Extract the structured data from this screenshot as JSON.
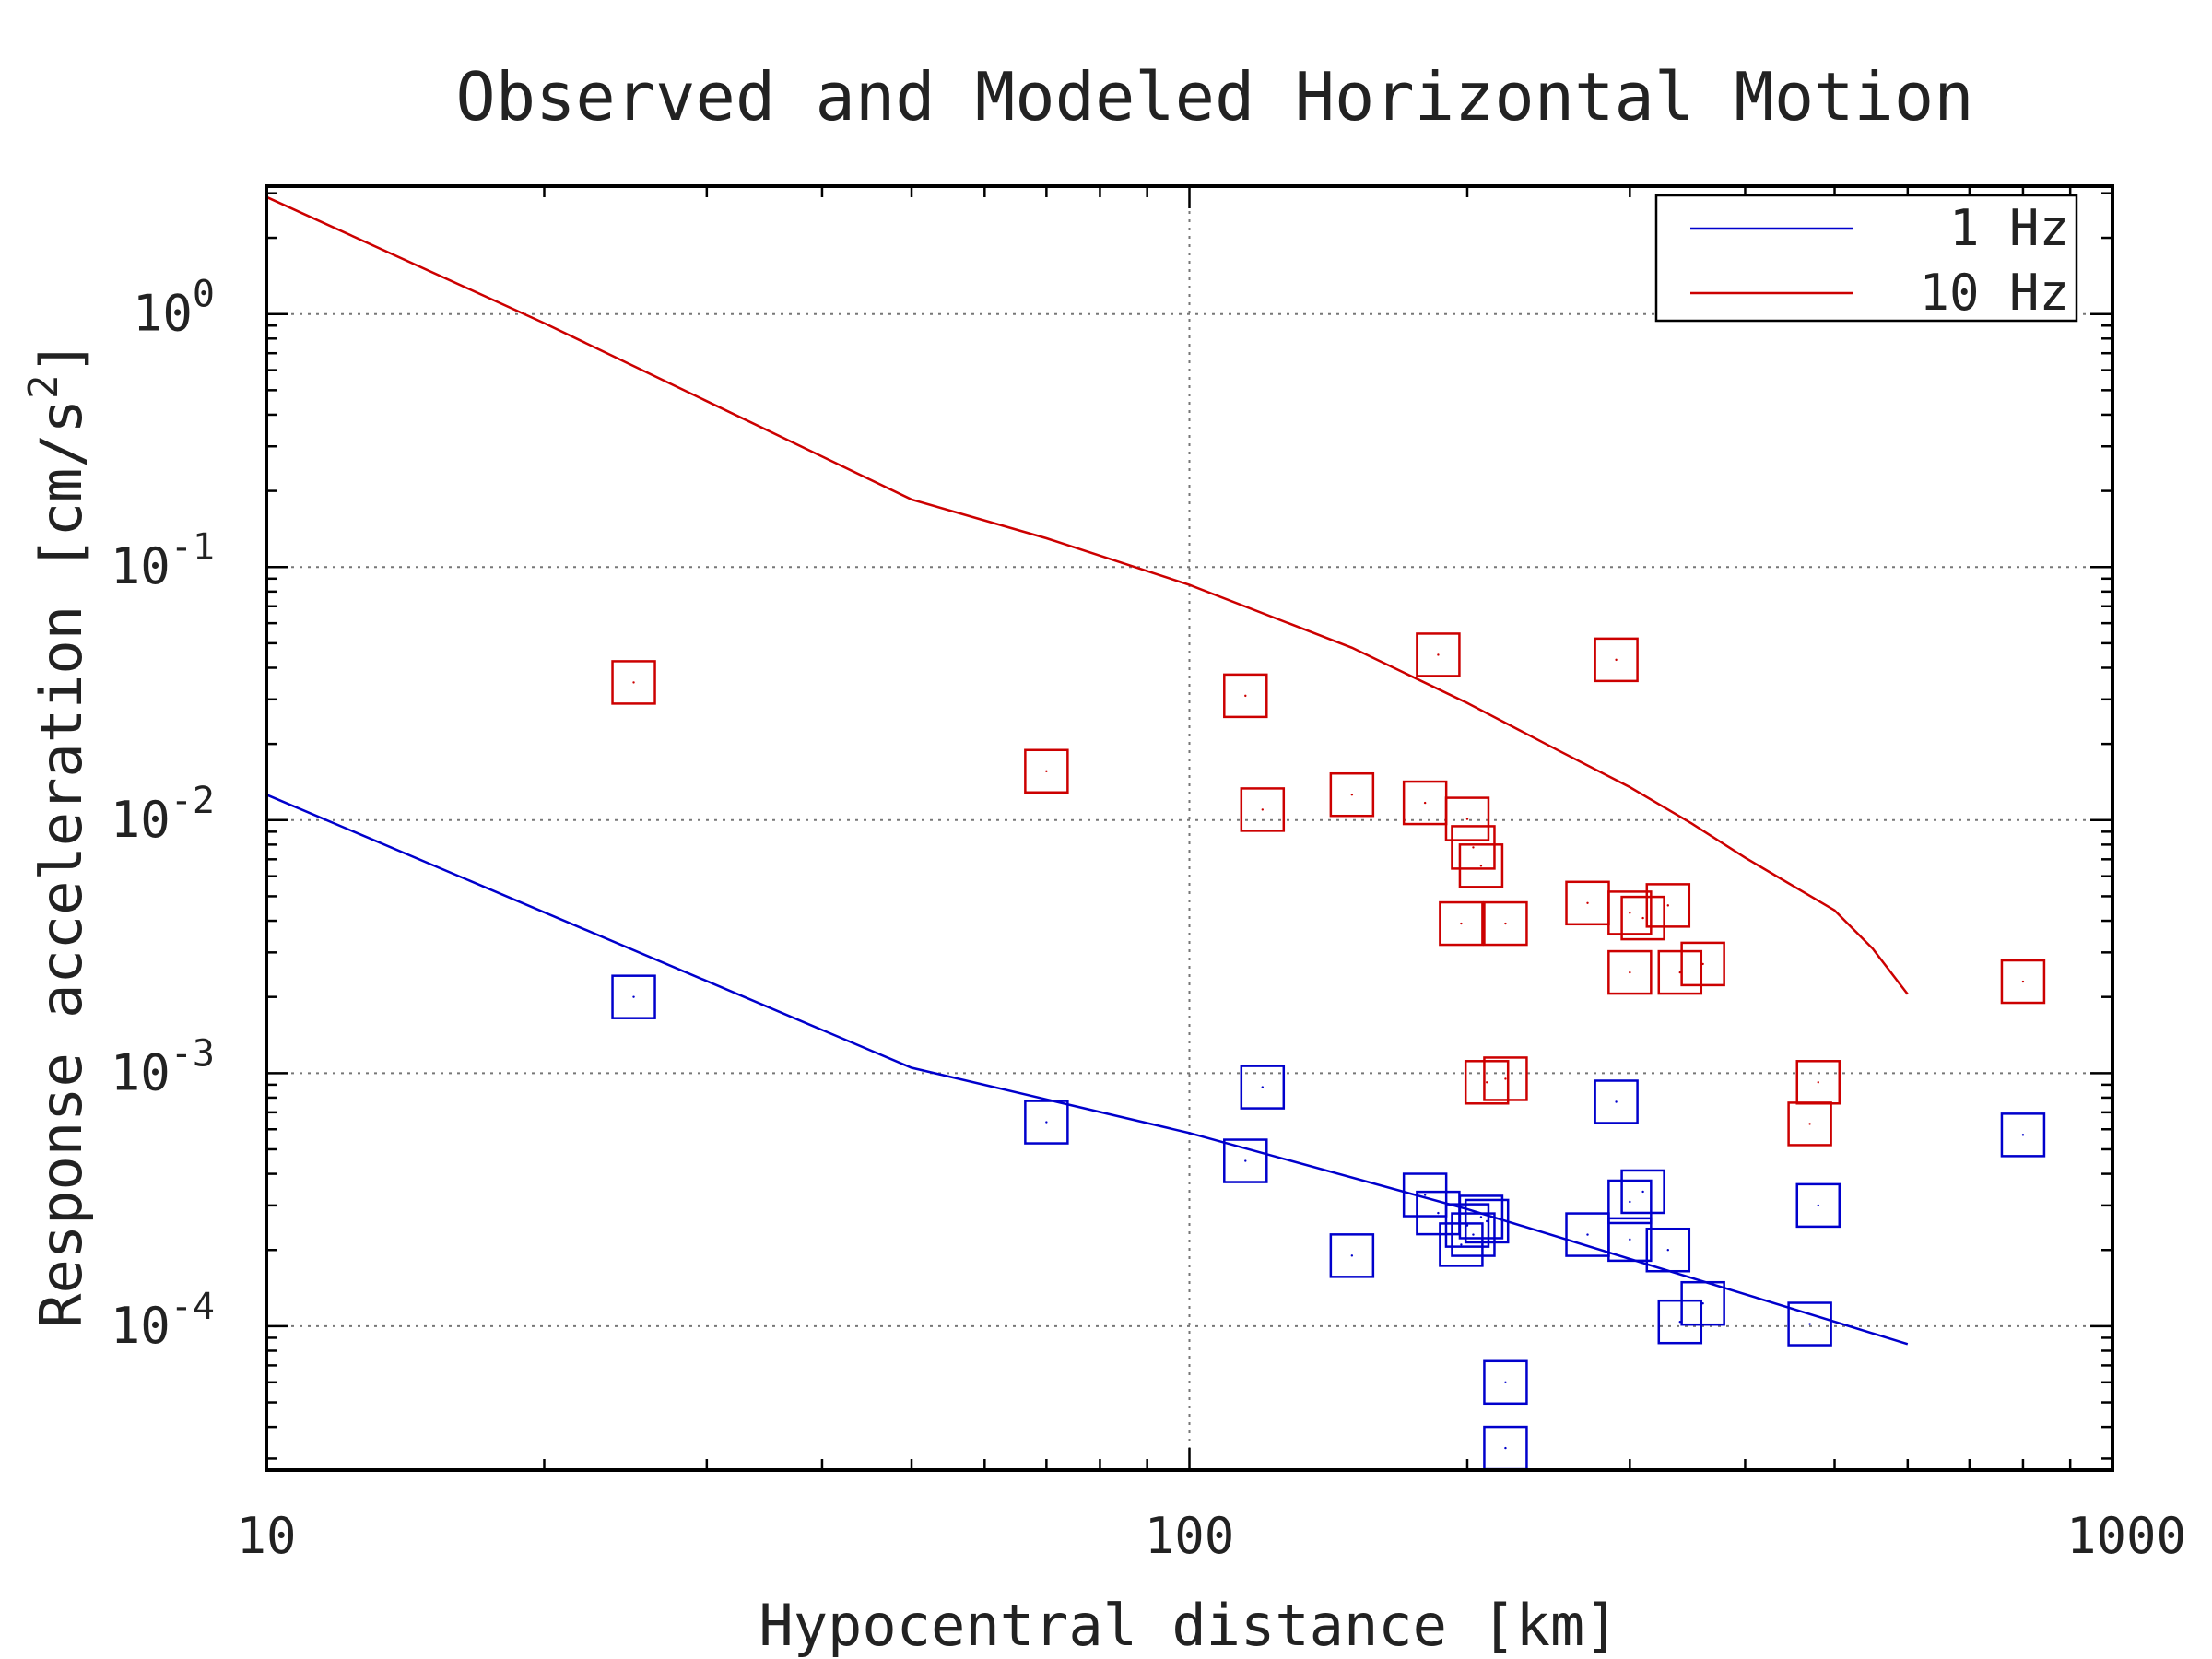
{
  "chart_data": {
    "type": "scatter",
    "title": "Observed and Modeled Horizontal Motion",
    "xlabel": "Hypocentral distance [km]",
    "ylabel": "Response acceleration [cm/s^2]",
    "x_scale": "log",
    "y_scale": "log",
    "xlim": [
      10,
      1000
    ],
    "ylim": [
      2.7e-05,
      3.2
    ],
    "x_ticks": [
      {
        "value": 10,
        "label": "10"
      },
      {
        "value": 100,
        "label": "100"
      },
      {
        "value": 1000,
        "label": "1000"
      }
    ],
    "y_ticks": [
      {
        "value": 0.0001,
        "base": "10",
        "exp": "-4"
      },
      {
        "value": 0.001,
        "base": "10",
        "exp": "-3"
      },
      {
        "value": 0.01,
        "base": "10",
        "exp": "-2"
      },
      {
        "value": 0.1,
        "base": "10",
        "exp": "-1"
      },
      {
        "value": 1,
        "base": "10",
        "exp": "0"
      }
    ],
    "grid": true,
    "legend_position": "top-right",
    "series": [
      {
        "name": "1 Hz",
        "kind": "line",
        "color": "#0000cc",
        "x": [
          10,
          50,
          100,
          200,
          600
        ],
        "y": [
          0.0126,
          0.00105,
          0.00058,
          0.00029,
          8.5e-05
        ]
      },
      {
        "name": "10 Hz",
        "kind": "line",
        "color": "#cc0000",
        "x": [
          10,
          20,
          50,
          70,
          100,
          150,
          200,
          250,
          300,
          350,
          400,
          500,
          550,
          600
        ],
        "y": [
          2.9,
          0.92,
          0.185,
          0.13,
          0.085,
          0.048,
          0.029,
          0.019,
          0.0135,
          0.0097,
          0.0071,
          0.0044,
          0.0031,
          0.00205
        ]
      },
      {
        "kind": "markers",
        "color": "#0000cc",
        "marker": "square",
        "x": [
          25,
          70,
          115,
          120,
          150,
          180,
          186,
          197,
          200,
          203,
          207,
          210,
          220,
          220,
          270,
          290,
          300,
          300,
          310,
          330,
          340,
          360,
          470,
          480,
          800
        ],
        "y": [
          0.002,
          0.00064,
          0.00045,
          0.00088,
          0.00019,
          0.00033,
          0.00028,
          0.00021,
          0.00025,
          0.00023,
          0.00027,
          0.00026,
          6e-05,
          3.3e-05,
          0.00023,
          0.00077,
          0.00031,
          0.00022,
          0.00034,
          0.0002,
          0.000104,
          0.000123,
          0.000102,
          0.0003,
          0.00057
        ]
      },
      {
        "kind": "markers",
        "color": "#cc0000",
        "marker": "square",
        "x": [
          25,
          70,
          115,
          120,
          150,
          180,
          186,
          197,
          200,
          203,
          207,
          210,
          220,
          220,
          270,
          290,
          300,
          300,
          310,
          330,
          340,
          360,
          470,
          480,
          800
        ],
        "y": [
          0.035,
          0.0156,
          0.031,
          0.011,
          0.0126,
          0.0117,
          0.045,
          0.0039,
          0.0101,
          0.0078,
          0.0066,
          0.00092,
          0.0039,
          0.00095,
          0.0047,
          0.043,
          0.0043,
          0.0025,
          0.0041,
          0.0046,
          0.0025,
          0.0027,
          0.00063,
          0.00092,
          0.0023
        ]
      }
    ]
  }
}
